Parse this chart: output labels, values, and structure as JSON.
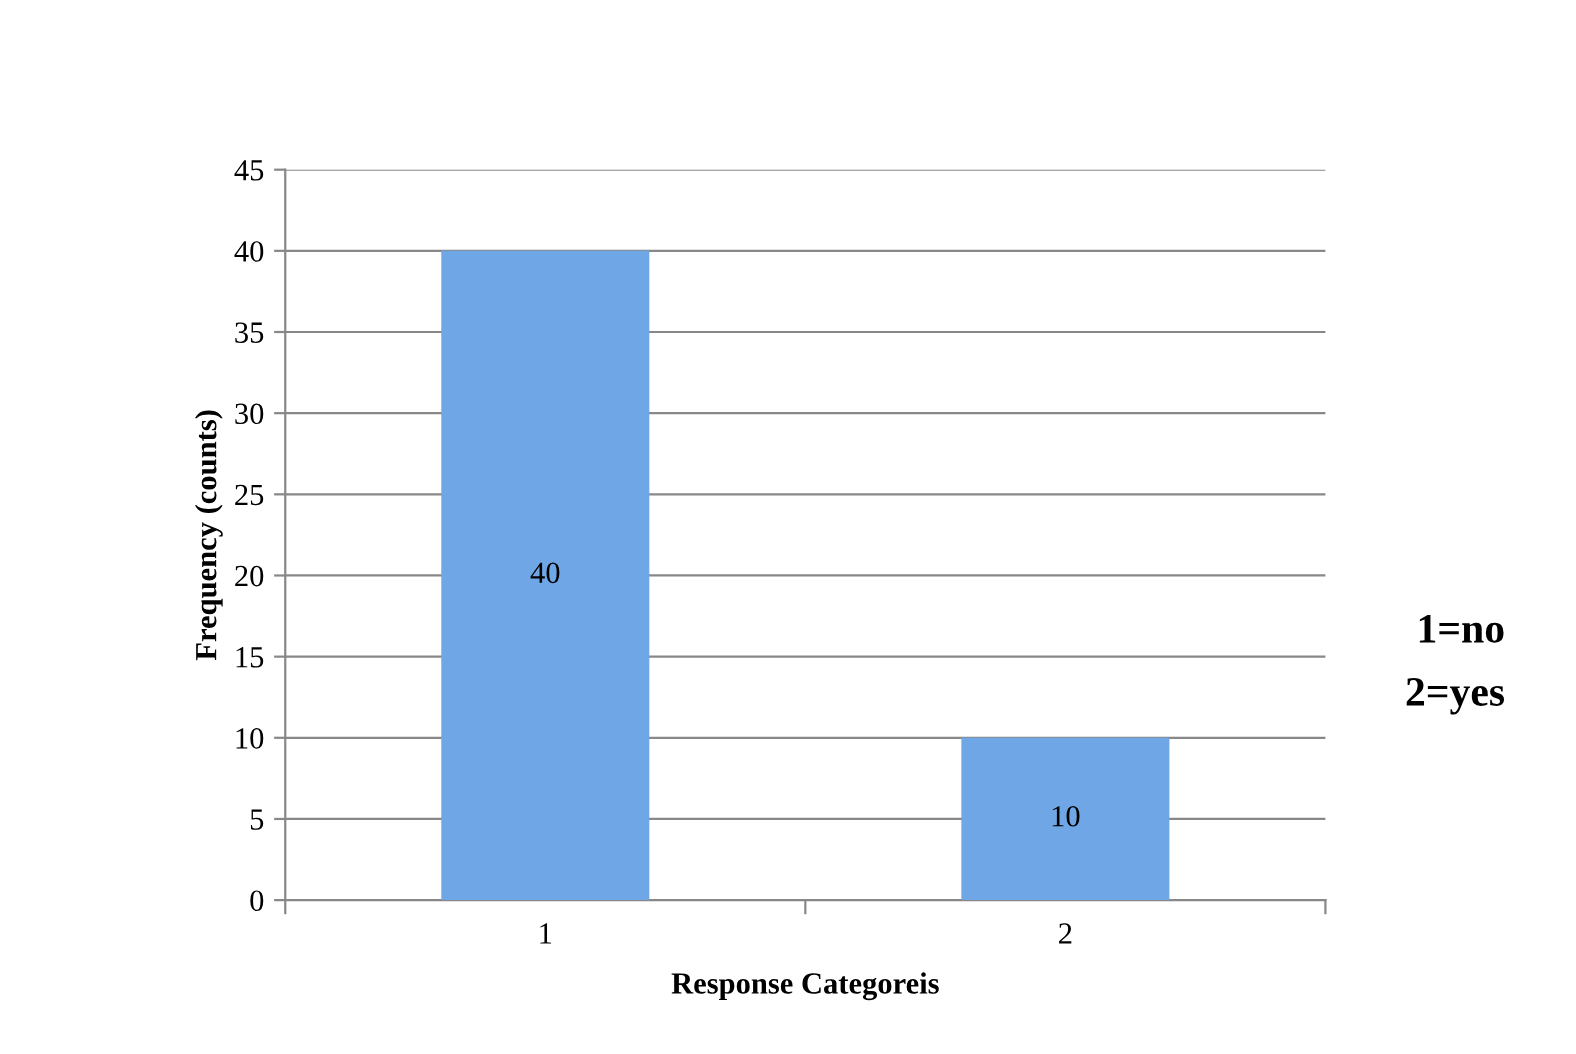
{
  "chart_data": {
    "type": "bar",
    "xlabel": "Response Categoreis",
    "ylabel": "Frequency (counts)",
    "categories": [
      "1",
      "2"
    ],
    "values": [
      40,
      10
    ],
    "color": "#6fa6e6",
    "ylim": [
      0,
      45
    ],
    "yticks": [
      0,
      5,
      10,
      15,
      20,
      25,
      30,
      35,
      40,
      45
    ],
    "grid": "y",
    "data_labels": true,
    "legend": false,
    "annotations": [
      "1=no",
      "2=yes"
    ]
  }
}
